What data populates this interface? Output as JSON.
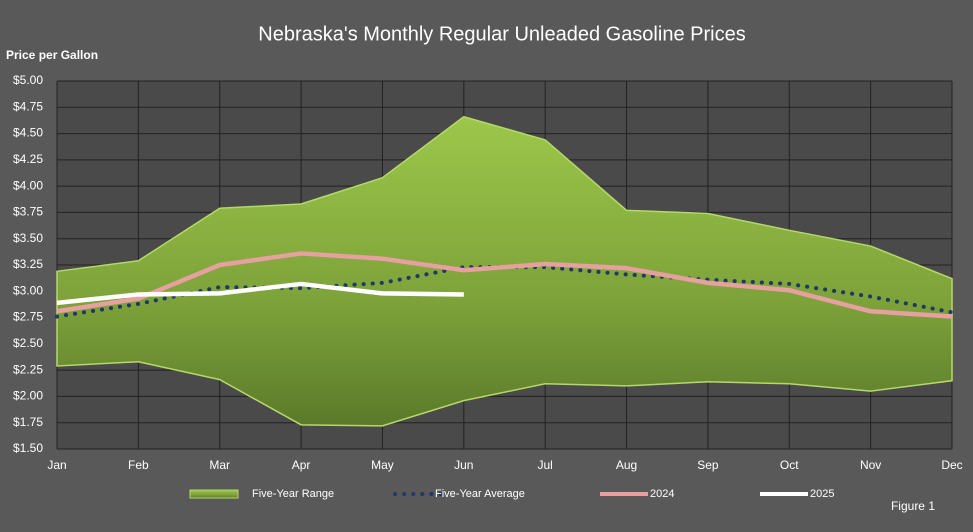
{
  "chart_data": {
    "type": "range-line",
    "title": "Nebraska's Monthly Regular Unleaded Gasoline Prices",
    "y_label": "Price per Gallon",
    "annotation": "Figure 1",
    "categories": [
      "Jan",
      "Feb",
      "Mar",
      "Apr",
      "May",
      "Jun",
      "Jul",
      "Aug",
      "Sep",
      "Oct",
      "Nov",
      "Dec"
    ],
    "ylim": [
      1.5,
      5.0
    ],
    "yticks": [
      {
        "value": 1.5,
        "label": "$1.50"
      },
      {
        "value": 1.75,
        "label": "$1.75"
      },
      {
        "value": 2.0,
        "label": "$2.00"
      },
      {
        "value": 2.25,
        "label": "$2.25"
      },
      {
        "value": 2.5,
        "label": "$2.50"
      },
      {
        "value": 2.75,
        "label": "$2.75"
      },
      {
        "value": 3.0,
        "label": "$3.00"
      },
      {
        "value": 3.25,
        "label": "$3.25"
      },
      {
        "value": 3.5,
        "label": "$3.50"
      },
      {
        "value": 3.75,
        "label": "$3.75"
      },
      {
        "value": 4.0,
        "label": "$4.00"
      },
      {
        "value": 4.25,
        "label": "$4.25"
      },
      {
        "value": 4.5,
        "label": "$4.50"
      },
      {
        "value": 4.75,
        "label": "$4.75"
      },
      {
        "value": 5.0,
        "label": "$5.00"
      }
    ],
    "grid": true,
    "series": [
      {
        "name": "Five-Year Range",
        "kind": "range",
        "color": "#8ab040",
        "high": [
          3.19,
          3.29,
          3.79,
          3.83,
          4.08,
          4.66,
          4.44,
          3.77,
          3.74,
          3.58,
          3.43,
          3.12
        ],
        "low": [
          2.29,
          2.33,
          2.16,
          1.73,
          1.72,
          1.96,
          2.12,
          2.1,
          2.14,
          2.12,
          2.05,
          2.15
        ]
      },
      {
        "name": "Five-Year Average",
        "kind": "dotted",
        "color": "#1f3864",
        "values": [
          2.76,
          2.88,
          3.04,
          3.03,
          3.08,
          3.23,
          3.23,
          3.16,
          3.11,
          3.07,
          2.95,
          2.8
        ]
      },
      {
        "name": "2024",
        "kind": "line",
        "color": "#e6a0a0",
        "values": [
          2.81,
          2.93,
          3.25,
          3.36,
          3.31,
          3.2,
          3.26,
          3.22,
          3.08,
          3.01,
          2.81,
          2.76
        ]
      },
      {
        "name": "2025",
        "kind": "line",
        "color": "#ffffff",
        "values": [
          2.89,
          2.97,
          2.98,
          3.07,
          2.98,
          2.97,
          null,
          null,
          null,
          null,
          null,
          null
        ]
      }
    ]
  }
}
